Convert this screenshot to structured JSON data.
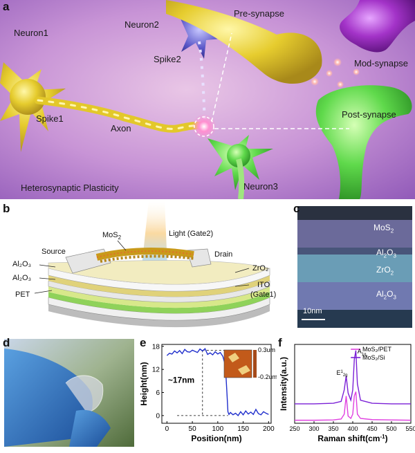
{
  "panels": {
    "a": "a",
    "b": "b",
    "c": "c",
    "d": "d",
    "e": "e",
    "f": "f"
  },
  "panel_a": {
    "neuron1": "Neuron1",
    "neuron2": "Neuron2",
    "neuron3": "Neuron3",
    "spike1": "Spike1",
    "spike2": "Spike2",
    "axon": "Axon",
    "pre_synapse": "Pre-synapse",
    "post_synapse": "Post-synapse",
    "mod_synapse": "Mod-synapse",
    "title": "Heterosynaptic Plasticity"
  },
  "panel_b": {
    "light": "Light (Gate2)",
    "mos2": "MoS",
    "mos2_sub": "2",
    "source": "Source",
    "drain": "Drain",
    "al2o3_top": "Al₂O₃",
    "al2o3_bottom": "Al₂O₃",
    "zro2": "ZrO₂",
    "ito": "ITO",
    "gate1": "(Gate1)",
    "pet": "PET"
  },
  "panel_c": {
    "mos2": "MoS",
    "mos2_sub": "2",
    "al2o3_a": "Al",
    "al2o3_a_sub1": "2",
    "al2o3_a_mid": "O",
    "al2o3_a_sub2": "3",
    "zro2": "ZrO",
    "zro2_sub": "2",
    "al2o3_b": "Al",
    "al2o3_b_sub1": "2",
    "al2o3_b_mid": "O",
    "al2o3_b_sub2": "3",
    "scalebar": "10nm"
  },
  "chart_data": [
    {
      "panel": "e",
      "type": "line",
      "xlabel": "Position(nm)",
      "ylabel": "Height(nm)",
      "xlim": [
        -10,
        205
      ],
      "ylim": [
        -2,
        18.5
      ],
      "xticks": [
        "0",
        "50",
        "100",
        "150",
        "200"
      ],
      "yticks": [
        "0",
        "6",
        "12",
        "18"
      ],
      "annotation": "~17nm",
      "inset_scale_top": "0.3um",
      "inset_scale_bottom": "-0.2um",
      "series": [
        {
          "color": "#1f2ecc",
          "x": [
            0,
            5,
            10,
            15,
            20,
            25,
            30,
            35,
            40,
            45,
            50,
            55,
            60,
            65,
            70,
            75,
            80,
            85,
            90,
            95,
            100,
            105,
            110,
            115,
            118,
            120,
            122,
            125,
            130,
            135,
            140,
            145,
            150,
            155,
            160,
            165,
            170,
            175,
            180,
            185,
            190,
            195,
            200
          ],
          "y": [
            15.6,
            16.2,
            16.0,
            16.8,
            16.3,
            16.9,
            16.1,
            17.2,
            16.6,
            16.5,
            17.0,
            16.7,
            16.4,
            17.3,
            16.8,
            17.4,
            15.9,
            16.3,
            15.8,
            16.6,
            16.0,
            16.4,
            15.4,
            13.0,
            6.0,
            1.0,
            0.3,
            0.8,
            0.2,
            0.6,
            0.0,
            1.0,
            0.2,
            1.2,
            0.4,
            0.9,
            0.3,
            1.6,
            0.5,
            0.2,
            1.0,
            0.6,
            0.3
          ]
        }
      ]
    },
    {
      "panel": "f",
      "type": "line",
      "xlabel": "Raman shift(cm",
      "xlabel_sup": "-1",
      "xlabel_close": ")",
      "ylabel": "Intensity(a.u.)",
      "xlim": [
        250,
        550
      ],
      "xticks": [
        "250",
        "300",
        "350",
        "400",
        "450",
        "500",
        "550"
      ],
      "peak_label_e": "E",
      "peak_label_e_sup": "1",
      "peak_label_e_sub": "2g",
      "peak_label_a": "A",
      "peak_label_a_sub": "1g",
      "legend": [
        "MoS₂/PET",
        "MoS₂/Si"
      ],
      "series": [
        {
          "name": "MoS₂/PET",
          "color": "#e040e0",
          "x": [
            250,
            300,
            350,
            370,
            378,
            383,
            388,
            395,
            400,
            404,
            408,
            412,
            420,
            450,
            500,
            550
          ],
          "y": [
            0.5,
            0.5,
            0.55,
            0.7,
            1.5,
            4.5,
            1.2,
            0.8,
            1.5,
            4.5,
            5.2,
            1.5,
            0.8,
            0.6,
            0.55,
            0.5
          ]
        },
        {
          "name": "MoS₂/Si",
          "color": "#7a1fd6",
          "x": [
            250,
            300,
            350,
            370,
            378,
            383,
            388,
            395,
            400,
            404,
            408,
            412,
            420,
            450,
            500,
            550
          ],
          "y": [
            3.2,
            3.2,
            3.3,
            3.6,
            5.5,
            7.8,
            5.0,
            3.8,
            5.5,
            10.5,
            12.0,
            6.5,
            3.8,
            3.3,
            3.2,
            3.2
          ]
        }
      ]
    }
  ]
}
